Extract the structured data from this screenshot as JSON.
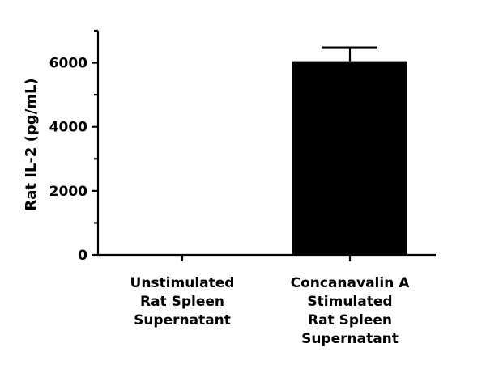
{
  "chart_data": {
    "type": "bar",
    "title": "",
    "xlabel": "",
    "ylabel": "Rat IL-2 (pg/mL)",
    "ylim": [
      0,
      7000
    ],
    "yticks": [
      0,
      2000,
      4000,
      6000
    ],
    "yminor_ticks": [
      1000,
      3000,
      5000,
      7000
    ],
    "categories": [
      [
        "Unstimulated",
        "Rat Spleen",
        "Supernatant"
      ],
      [
        "Concanavalin A",
        "Stimulated",
        "Rat Spleen",
        "Supernatant"
      ]
    ],
    "values": [
      0,
      6050
    ],
    "error_upper": [
      0,
      430
    ],
    "bar_color": "#000000",
    "grid": false,
    "legend": null
  }
}
